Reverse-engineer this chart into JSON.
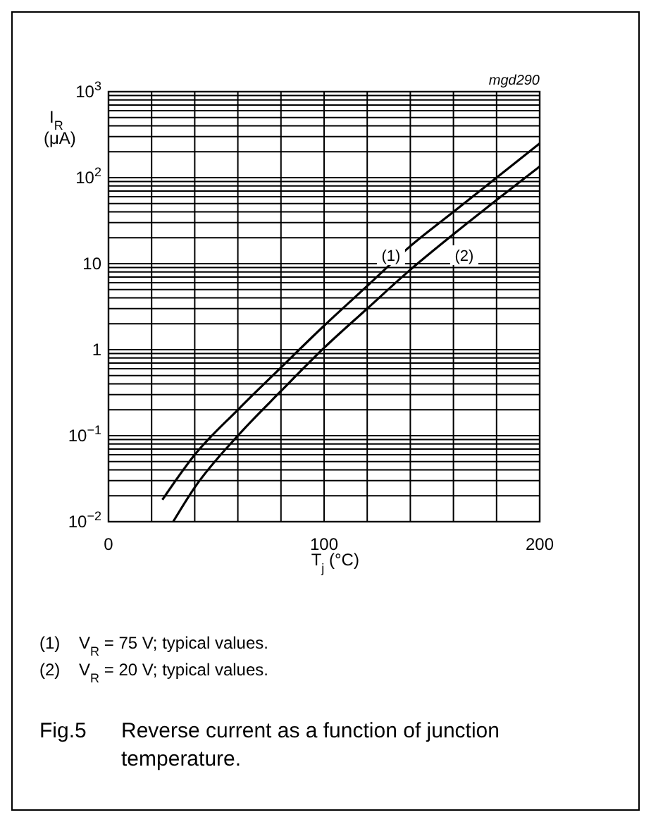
{
  "chart_data": {
    "type": "line",
    "title": "Fig.5    Reverse current as a function of junction temperature.",
    "xlabel": "T$_{j}$ (°C)",
    "ylabel": "I$_{R}$ (μA)",
    "log": "y",
    "grid": true,
    "line_style": "solid",
    "marker": "none",
    "xlim": [
      0,
      200
    ],
    "ylim": [
      0.01,
      1000
    ],
    "xticks": [
      0,
      {
        "value": 20,
        "label": null
      },
      {
        "value": 40,
        "label": null
      },
      {
        "value": 60,
        "label": null
      },
      {
        "value": 80,
        "label": null
      },
      100,
      {
        "value": 120,
        "label": null
      },
      {
        "value": 140,
        "label": null
      },
      {
        "value": 160,
        "label": null
      },
      {
        "value": 180,
        "label": null
      },
      200
    ],
    "yticks": [
      {
        "value": 0.01,
        "label": "10$^{−2}$"
      },
      {
        "value": 0.02,
        "label": null
      },
      {
        "value": 0.03,
        "label": null
      },
      {
        "value": 0.04,
        "label": null
      },
      {
        "value": 0.05,
        "label": null
      },
      {
        "value": 0.06,
        "label": null
      },
      {
        "value": 0.07,
        "label": null
      },
      {
        "value": 0.08,
        "label": null
      },
      {
        "value": 0.09,
        "label": null
      },
      {
        "value": 0.1,
        "label": "10$^{−1}$"
      },
      {
        "value": 0.2,
        "label": null
      },
      {
        "value": 0.3,
        "label": null
      },
      {
        "value": 0.4,
        "label": null
      },
      {
        "value": 0.5,
        "label": null
      },
      {
        "value": 0.6,
        "label": null
      },
      {
        "value": 0.7,
        "label": null
      },
      {
        "value": 0.8,
        "label": null
      },
      {
        "value": 0.9,
        "label": null
      },
      1,
      {
        "value": 2,
        "label": null
      },
      {
        "value": 3,
        "label": null
      },
      {
        "value": 4,
        "label": null
      },
      {
        "value": 5,
        "label": null
      },
      {
        "value": 6,
        "label": null
      },
      {
        "value": 7,
        "label": null
      },
      {
        "value": 8,
        "label": null
      },
      {
        "value": 9,
        "label": null
      },
      10,
      {
        "value": 20,
        "label": null
      },
      {
        "value": 30,
        "label": null
      },
      {
        "value": 40,
        "label": null
      },
      {
        "value": 50,
        "label": null
      },
      {
        "value": 60,
        "label": null
      },
      {
        "value": 70,
        "label": null
      },
      {
        "value": 80,
        "label": null
      },
      {
        "value": 90,
        "label": null
      },
      {
        "value": 100,
        "label": "10$^{2}$"
      },
      {
        "value": 200,
        "label": null
      },
      {
        "value": 300,
        "label": null
      },
      {
        "value": 400,
        "label": null
      },
      {
        "value": 500,
        "label": null
      },
      {
        "value": 600,
        "label": null
      },
      {
        "value": 700,
        "label": null
      },
      {
        "value": 800,
        "label": null
      },
      {
        "value": 900,
        "label": null
      },
      {
        "value": 1000,
        "label": "10$^{3}$"
      }
    ],
    "series": [
      {
        "color": "#000000",
        "x": [
          25,
          40,
          60,
          80,
          100,
          120,
          140,
          160,
          180,
          200
        ],
        "values": [
          0.018,
          0.06,
          0.2,
          0.62,
          1.9,
          5.5,
          16,
          40,
          100,
          250
        ]
      },
      {
        "color": "#000000",
        "x": [
          30,
          40,
          60,
          80,
          100,
          120,
          140,
          160,
          180,
          200
        ],
        "values": [
          0.01,
          0.025,
          0.1,
          0.33,
          1.05,
          3,
          8.5,
          22,
          55,
          135
        ]
      }
    ],
    "annotations": [
      "mgd290",
      "(1)",
      "(2)",
      "(1)    V$_{R}$ = 75 V; typical values.",
      "(2)    V$_{R}$ = 20 V; typical values."
    ]
  }
}
